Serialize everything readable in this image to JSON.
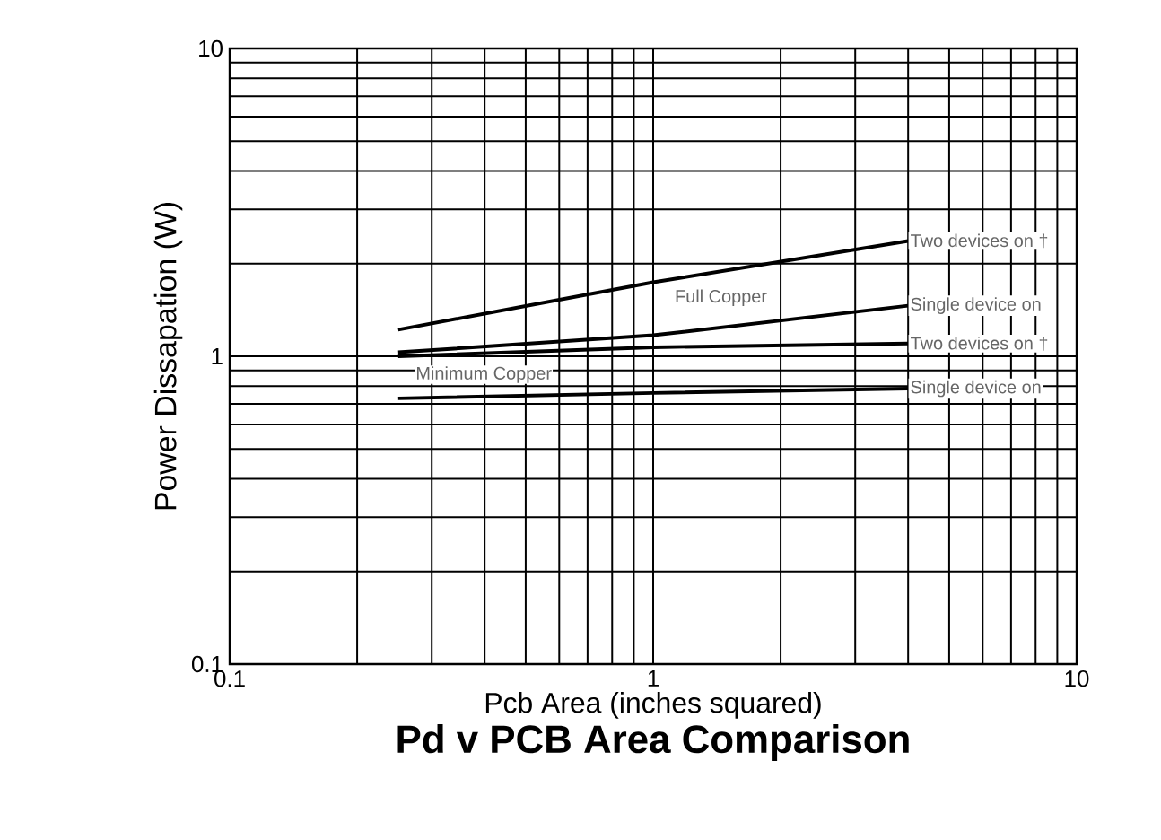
{
  "chart_data": {
    "type": "line",
    "title": "Pd v PCB Area Comparison",
    "xlabel": "Pcb Area (inches squared)",
    "ylabel": "Power Dissapation (W)",
    "log": "xy",
    "grid": true,
    "xlim": [
      0.1,
      10
    ],
    "ylim": [
      0.1,
      10
    ],
    "xticks": [
      0.1,
      1,
      10
    ],
    "yticks": [
      0.1,
      1,
      10
    ],
    "annotations": [
      "Full Copper",
      "Minimum Copper"
    ],
    "series": [
      {
        "name": "Two devices on †",
        "color": "#000000",
        "x": [
          0.25,
          1,
          4
        ],
        "values": [
          1.22,
          1.74,
          2.37
        ]
      },
      {
        "name": "Single device on",
        "color": "#000000",
        "x": [
          0.25,
          1,
          4
        ],
        "values": [
          1.03,
          1.17,
          1.46
        ]
      },
      {
        "name": "Two devices on †",
        "color": "#000000",
        "x": [
          0.25,
          1,
          4
        ],
        "values": [
          1.0,
          1.07,
          1.1
        ]
      },
      {
        "name": "Single device on",
        "color": "#000000",
        "x": [
          0.25,
          1,
          4
        ],
        "values": [
          0.73,
          0.76,
          0.785
        ]
      }
    ]
  }
}
